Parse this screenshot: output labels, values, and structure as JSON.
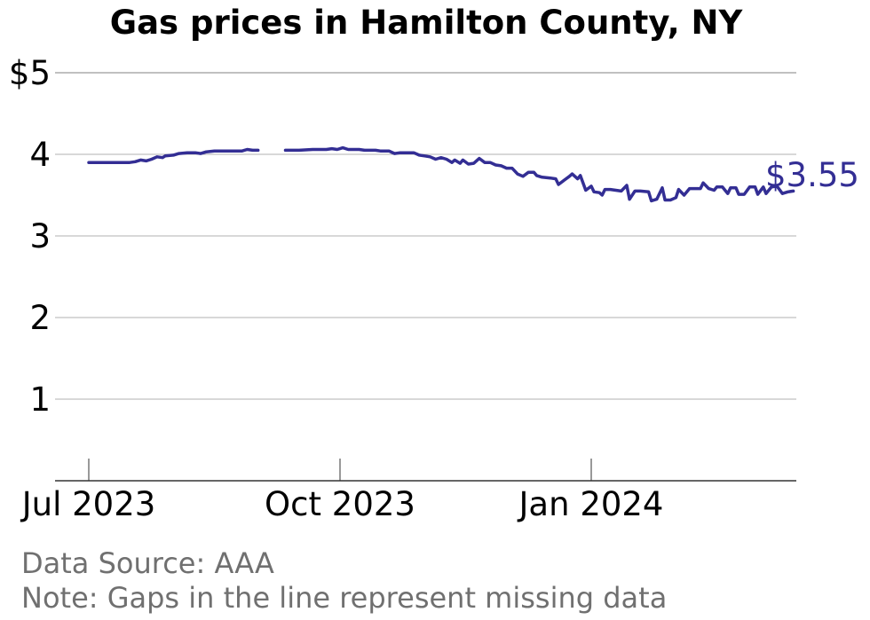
{
  "chart_data": {
    "type": "line",
    "title": "Gas prices in Hamilton County, NY",
    "xlabel": "",
    "ylabel": "",
    "y_ticks": [
      {
        "value": 5,
        "label": "$5"
      },
      {
        "value": 4,
        "label": "4"
      },
      {
        "value": 3,
        "label": "3"
      },
      {
        "value": 2,
        "label": "2"
      },
      {
        "value": 1,
        "label": "1"
      }
    ],
    "ylim": [
      0,
      5
    ],
    "xlim": [
      "2023-06-25",
      "2024-03-25"
    ],
    "x_ticks": [
      {
        "date": "2023-07-01",
        "label": "Jul 2023"
      },
      {
        "date": "2023-10-01",
        "label": "Oct 2023"
      },
      {
        "date": "2024-01-01",
        "label": "Jan 2024"
      }
    ],
    "grid": "horizontal",
    "line_color": "#332e94",
    "end_label": "$3.55",
    "series": [
      {
        "segments": [
          [
            [
              "2023-07-01",
              3.9
            ],
            [
              "2023-07-06",
              3.9
            ],
            [
              "2023-07-11",
              3.9
            ],
            [
              "2023-07-16",
              3.9
            ],
            [
              "2023-07-18",
              3.91
            ],
            [
              "2023-07-20",
              3.93
            ],
            [
              "2023-07-22",
              3.92
            ],
            [
              "2023-07-24",
              3.94
            ],
            [
              "2023-07-26",
              3.97
            ],
            [
              "2023-07-28",
              3.96
            ],
            [
              "2023-07-29",
              3.98
            ],
            [
              "2023-08-01",
              3.99
            ],
            [
              "2023-08-03",
              4.01
            ],
            [
              "2023-08-06",
              4.02
            ],
            [
              "2023-08-09",
              4.02
            ],
            [
              "2023-08-11",
              4.01
            ],
            [
              "2023-08-13",
              4.03
            ],
            [
              "2023-08-16",
              4.04
            ],
            [
              "2023-08-21",
              4.04
            ],
            [
              "2023-08-26",
              4.04
            ],
            [
              "2023-08-28",
              4.06
            ],
            [
              "2023-08-30",
              4.05
            ],
            [
              "2023-09-01",
              4.05
            ]
          ],
          [
            [
              "2023-09-11",
              4.05
            ],
            [
              "2023-09-16",
              4.05
            ],
            [
              "2023-09-21",
              4.06
            ],
            [
              "2023-09-26",
              4.06
            ],
            [
              "2023-09-28",
              4.07
            ],
            [
              "2023-09-30",
              4.06
            ],
            [
              "2023-10-02",
              4.08
            ],
            [
              "2023-10-04",
              4.06
            ],
            [
              "2023-10-08",
              4.06
            ],
            [
              "2023-10-10",
              4.05
            ],
            [
              "2023-10-14",
              4.05
            ],
            [
              "2023-10-16",
              4.04
            ],
            [
              "2023-10-19",
              4.04
            ],
            [
              "2023-10-21",
              4.01
            ],
            [
              "2023-10-23",
              4.02
            ],
            [
              "2023-10-28",
              4.02
            ],
            [
              "2023-10-30",
              3.99
            ],
            [
              "2023-11-01",
              3.98
            ],
            [
              "2023-11-03",
              3.97
            ],
            [
              "2023-11-05",
              3.94
            ],
            [
              "2023-11-07",
              3.96
            ],
            [
              "2023-11-09",
              3.94
            ],
            [
              "2023-11-11",
              3.9
            ],
            [
              "2023-11-12",
              3.93
            ],
            [
              "2023-11-14",
              3.89
            ],
            [
              "2023-11-15",
              3.93
            ],
            [
              "2023-11-17",
              3.88
            ],
            [
              "2023-11-19",
              3.89
            ],
            [
              "2023-11-21",
              3.95
            ],
            [
              "2023-11-23",
              3.9
            ],
            [
              "2023-11-25",
              3.9
            ],
            [
              "2023-11-27",
              3.87
            ],
            [
              "2023-11-29",
              3.86
            ],
            [
              "2023-12-01",
              3.83
            ],
            [
              "2023-12-03",
              3.83
            ],
            [
              "2023-12-05",
              3.76
            ],
            [
              "2023-12-07",
              3.73
            ],
            [
              "2023-12-09",
              3.78
            ],
            [
              "2023-12-11",
              3.78
            ],
            [
              "2023-12-12",
              3.74
            ],
            [
              "2023-12-14",
              3.72
            ],
            [
              "2023-12-17",
              3.71
            ],
            [
              "2023-12-19",
              3.7
            ],
            [
              "2023-12-20",
              3.63
            ],
            [
              "2023-12-22",
              3.68
            ],
            [
              "2023-12-24",
              3.73
            ],
            [
              "2023-12-25",
              3.76
            ],
            [
              "2023-12-27",
              3.7
            ],
            [
              "2023-12-28",
              3.74
            ],
            [
              "2023-12-30",
              3.56
            ],
            [
              "2024-01-01",
              3.61
            ],
            [
              "2024-01-02",
              3.54
            ],
            [
              "2024-01-04",
              3.53
            ],
            [
              "2024-01-05",
              3.5
            ],
            [
              "2024-01-06",
              3.57
            ],
            [
              "2024-01-08",
              3.57
            ],
            [
              "2024-01-10",
              3.56
            ],
            [
              "2024-01-12",
              3.55
            ],
            [
              "2024-01-14",
              3.62
            ],
            [
              "2024-01-15",
              3.45
            ],
            [
              "2024-01-17",
              3.55
            ],
            [
              "2024-01-19",
              3.55
            ],
            [
              "2024-01-22",
              3.54
            ],
            [
              "2024-01-23",
              3.43
            ],
            [
              "2024-01-25",
              3.45
            ],
            [
              "2024-01-27",
              3.59
            ],
            [
              "2024-01-28",
              3.44
            ],
            [
              "2024-01-30",
              3.44
            ],
            [
              "2024-02-01",
              3.47
            ],
            [
              "2024-02-02",
              3.57
            ],
            [
              "2024-02-04",
              3.5
            ],
            [
              "2024-02-06",
              3.58
            ],
            [
              "2024-02-08",
              3.58
            ],
            [
              "2024-02-10",
              3.58
            ],
            [
              "2024-02-11",
              3.65
            ],
            [
              "2024-02-13",
              3.58
            ],
            [
              "2024-02-15",
              3.56
            ],
            [
              "2024-02-16",
              3.6
            ],
            [
              "2024-02-18",
              3.6
            ],
            [
              "2024-02-20",
              3.52
            ],
            [
              "2024-02-21",
              3.59
            ],
            [
              "2024-02-23",
              3.59
            ],
            [
              "2024-02-24",
              3.51
            ],
            [
              "2024-02-26",
              3.51
            ],
            [
              "2024-02-28",
              3.6
            ],
            [
              "2024-03-01",
              3.6
            ],
            [
              "2024-03-02",
              3.51
            ],
            [
              "2024-03-04",
              3.6
            ],
            [
              "2024-03-05",
              3.52
            ],
            [
              "2024-03-07",
              3.6
            ],
            [
              "2024-03-09",
              3.61
            ],
            [
              "2024-03-11",
              3.52
            ],
            [
              "2024-03-13",
              3.54
            ],
            [
              "2024-03-15",
              3.55
            ]
          ]
        ]
      }
    ]
  },
  "footer": {
    "source": "Data Source: AAA",
    "note": "Note: Gaps in the line represent missing data"
  }
}
